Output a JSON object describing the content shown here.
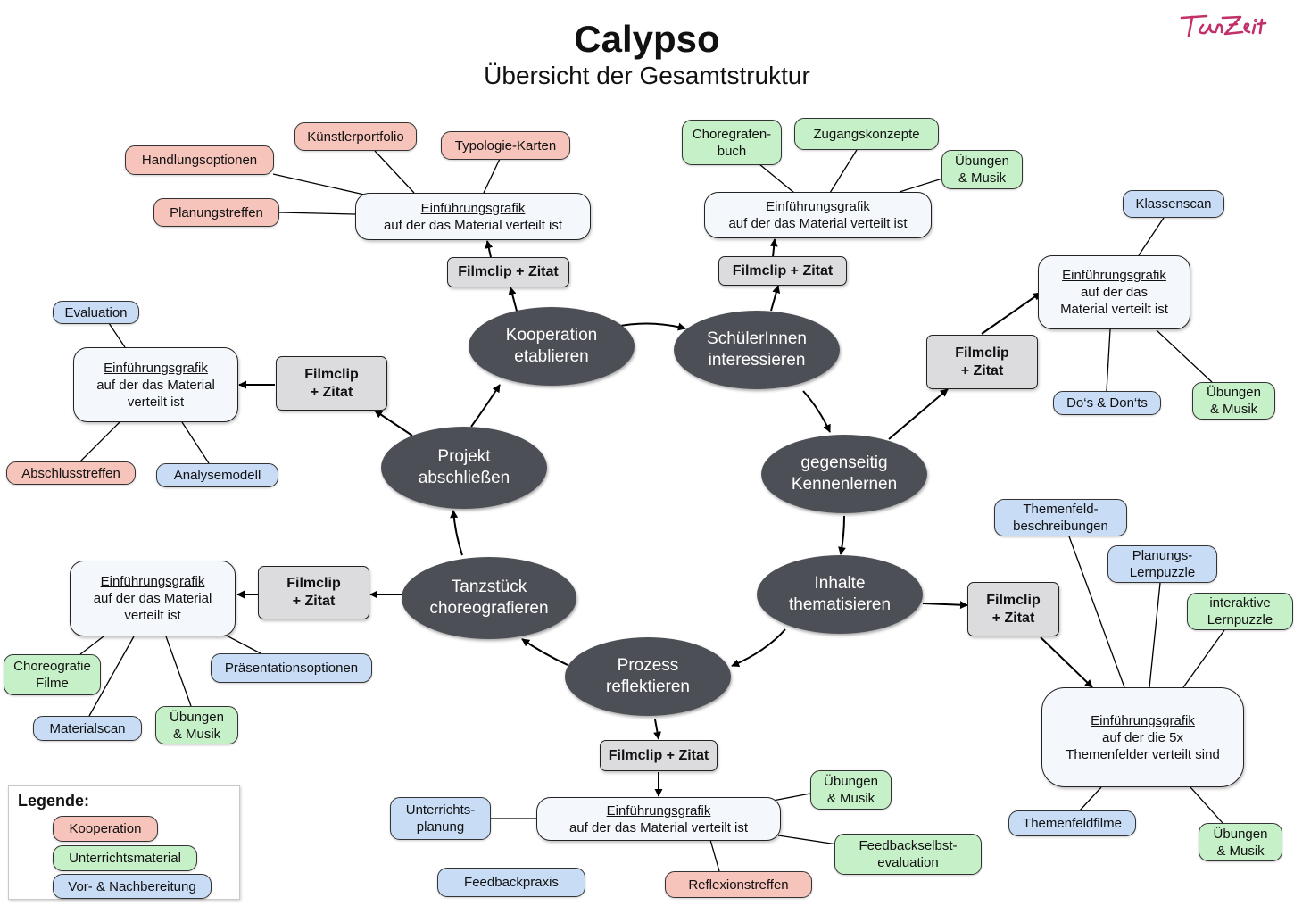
{
  "header": {
    "title": "Calypso",
    "subtitle": "Übersicht der Gesamtstruktur",
    "logo_text": "TanZeit"
  },
  "colors": {
    "circle": "#4c4f55",
    "kooperation": "#f7c4bb",
    "unterrichtsmaterial": "#c6f1c8",
    "vor_nachbereitung": "#c8dcf6",
    "filmclip": "#dcdcdf",
    "logo": "#c2306a"
  },
  "cycle": {
    "kooperation": [
      "Kooperation",
      "etablieren"
    ],
    "schueler": [
      "SchülerInnen",
      "interessieren"
    ],
    "kennenlernen": [
      "gegenseitig",
      "Kennenlernen"
    ],
    "inhalte": [
      "Inhalte",
      "thematisieren"
    ],
    "prozess": [
      "Prozess",
      "reflektieren"
    ],
    "tanzstueck": [
      "Tanzstück",
      "choreografieren"
    ],
    "projekt": [
      "Projekt",
      "abschließen"
    ]
  },
  "filmclip": {
    "one_line": "Filmclip + Zitat",
    "line1": "Filmclip",
    "line2": "+ Zitat"
  },
  "grafik": {
    "title": "Einführungsgrafik",
    "text_one_line": "auf der das Material verteilt ist",
    "text_two_a": "auf der das Material",
    "text_two_b": "verteilt ist",
    "text_three_a": "auf der das",
    "text_three_b": "Material verteilt ist",
    "text_themen_a": "auf der die 5x",
    "text_themen_b": "Themenfelder verteilt sind"
  },
  "materials": {
    "handlungsoptionen": "Handlungsoptionen",
    "kuenstlerportfolio": "Künstlerportfolio",
    "typologie": "Typologie-Karten",
    "planungstreffen": "Planungstreffen",
    "choregrafen": [
      "Choregrafen-",
      "buch"
    ],
    "zugangskonzepte": "Zugangskonzepte",
    "uebungen": [
      "Übungen",
      "& Musik"
    ],
    "klassenscan": "Klassenscan",
    "dos": "Do‘s & Don‘ts",
    "evaluation": "Evaluation",
    "abschlusstreffen": "Abschlusstreffen",
    "analysemodell": "Analysemodell",
    "themenfeld_beschreibungen": [
      "Themenfeld-",
      "beschreibungen"
    ],
    "planungs_lernpuzzle": [
      "Planungs-",
      "Lernpuzzle"
    ],
    "interaktive_lernpuzzle": [
      "interaktive",
      "Lernpuzzle"
    ],
    "themenfeldfilme": "Themenfeldfilme",
    "choreografie_filme": [
      "Choreografie",
      "Filme"
    ],
    "praesentationsoptionen": "Präsentationsoptionen",
    "materialscan": "Materialscan",
    "unterrichtsplanung": [
      "Unterrichts-",
      "planung"
    ],
    "feedbackpraxis": "Feedbackpraxis",
    "reflexionstreffen": "Reflexionstreffen",
    "feedbackselbst": [
      "Feedbackselbst-",
      "evaluation"
    ]
  },
  "legend": {
    "title": "Legende:",
    "kooperation": "Kooperation",
    "unterrichtsmaterial": "Unterrichtsmaterial",
    "vor_nachbereitung": "Vor- & Nachbereitung"
  }
}
